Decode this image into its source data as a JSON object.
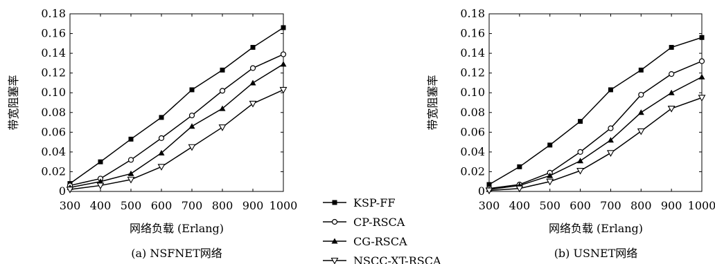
{
  "chart_data": [
    {
      "type": "line",
      "caption": "(a) NSFNET网络",
      "xlabel": "网络负载 (Erlang)",
      "ylabel": "带宽阻塞率",
      "x": [
        300,
        400,
        500,
        600,
        700,
        800,
        900,
        1000
      ],
      "xlim": [
        300,
        1000
      ],
      "ylim": [
        0,
        0.18
      ],
      "x_ticks": [
        "300",
        "400",
        "500",
        "600",
        "700",
        "800",
        "900",
        "1000"
      ],
      "y_ticks": [
        "0",
        "0.02",
        "0.04",
        "0.06",
        "0.08",
        "0.10",
        "0.12",
        "0.14",
        "0.16",
        "0.18"
      ],
      "grid": false,
      "series": [
        {
          "name": "KSP-FF",
          "values": [
            0.008,
            0.03,
            0.053,
            0.075,
            0.103,
            0.123,
            0.146,
            0.166
          ]
        },
        {
          "name": "CP-RSCA",
          "values": [
            0.006,
            0.013,
            0.032,
            0.054,
            0.077,
            0.102,
            0.125,
            0.139
          ]
        },
        {
          "name": "CG-RSCA",
          "values": [
            0.004,
            0.01,
            0.018,
            0.039,
            0.066,
            0.084,
            0.11,
            0.129
          ]
        },
        {
          "name": "NSCC-XT-RSCA",
          "values": [
            0.002,
            0.006,
            0.012,
            0.025,
            0.045,
            0.065,
            0.089,
            0.103
          ]
        }
      ]
    },
    {
      "type": "line",
      "caption": "(b) USNET网络",
      "xlabel": "网络负载 (Erlang)",
      "ylabel": "带宽阻塞率",
      "x": [
        300,
        400,
        500,
        600,
        700,
        800,
        900,
        1000
      ],
      "xlim": [
        300,
        1000
      ],
      "ylim": [
        0,
        0.18
      ],
      "x_ticks": [
        "300",
        "400",
        "500",
        "600",
        "700",
        "800",
        "900",
        "1000"
      ],
      "y_ticks": [
        "0",
        "0.02",
        "0.04",
        "0.06",
        "0.08",
        "0.10",
        "0.12",
        "0.14",
        "0.16",
        "0.18"
      ],
      "grid": false,
      "series": [
        {
          "name": "KSP-FF",
          "values": [
            0.007,
            0.025,
            0.047,
            0.071,
            0.103,
            0.123,
            0.146,
            0.156
          ]
        },
        {
          "name": "CP-RSCA",
          "values": [
            0.003,
            0.007,
            0.019,
            0.04,
            0.064,
            0.098,
            0.119,
            0.132
          ]
        },
        {
          "name": "CG-RSCA",
          "values": [
            0.002,
            0.006,
            0.016,
            0.031,
            0.052,
            0.08,
            0.1,
            0.116
          ]
        },
        {
          "name": "NSCC-XT-RSCA",
          "values": [
            0.001,
            0.003,
            0.01,
            0.021,
            0.039,
            0.061,
            0.084,
            0.095
          ]
        }
      ]
    }
  ],
  "legend": {
    "placement": "center-bottom",
    "entries": [
      {
        "label": "KSP-FF",
        "marker": "filled-square"
      },
      {
        "label": "CP-RSCA",
        "marker": "open-circle"
      },
      {
        "label": "CG-RSCA",
        "marker": "filled-triangle-up"
      },
      {
        "label": "NSCC-XT-RSCA",
        "marker": "open-triangle-down"
      }
    ]
  },
  "colors": {
    "line": "#000000",
    "background": "#ffffff"
  }
}
